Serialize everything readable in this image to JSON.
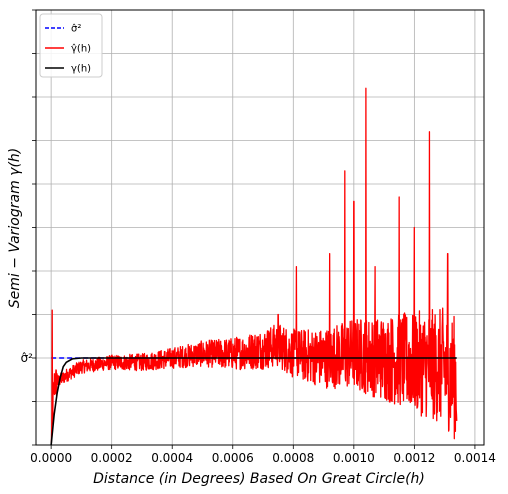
{
  "chart_data": {
    "type": "line",
    "xlabel": "Distance (in Degrees) Based On Great Circle(h)",
    "ylabel": "Semi − Variogram γ(h)",
    "xlim": [
      -5e-05,
      0.00143
    ],
    "ylim": [
      0.0,
      1.0
    ],
    "x_ticks": [
      0.0,
      0.0002,
      0.0004,
      0.0006,
      0.0008,
      0.001,
      0.0012,
      0.0014
    ],
    "x_tick_labels": [
      "0.0000",
      "0.0002",
      "0.0004",
      "0.0006",
      "0.0008",
      "0.0010",
      "0.0012",
      "0.0014"
    ],
    "y_ticks": [
      0.0,
      0.1,
      0.2,
      0.3,
      0.4,
      0.5,
      0.6,
      0.7,
      0.8,
      0.9,
      1.0
    ],
    "y_tick_label": "σ̂²",
    "y_tick_label_value": 0.2,
    "grid": true,
    "legend_position": "top-left",
    "legend": [
      "σ̂²",
      "γ̂(h)",
      "γ(h)"
    ],
    "series": [
      {
        "name": "σ̂²",
        "style": "dashed",
        "color": "#0000ff",
        "x": [
          0.0,
          0.00134
        ],
        "y": [
          0.2,
          0.2
        ]
      },
      {
        "name": "γ̂(h)",
        "style": "solid",
        "color": "#ff0000",
        "noisy": true,
        "x": [
          0.0,
          1e-05,
          5e-05,
          0.0001,
          0.0002,
          0.0003,
          0.0004,
          0.0005,
          0.0006,
          0.0007,
          0.00075,
          0.0008,
          0.0009,
          0.001,
          0.0011,
          0.0012,
          0.0013,
          0.00134
        ],
        "y": [
          0.0,
          0.14,
          0.16,
          0.18,
          0.19,
          0.19,
          0.2,
          0.21,
          0.21,
          0.22,
          0.23,
          0.21,
          0.2,
          0.21,
          0.2,
          0.19,
          0.18,
          0.15
        ],
        "peaks": [
          {
            "x": 3.5e-06,
            "y": 0.31
          },
          {
            "x": 0.00075,
            "y": 0.3
          },
          {
            "x": 0.00081,
            "y": 0.41
          },
          {
            "x": 0.00092,
            "y": 0.44
          },
          {
            "x": 0.00097,
            "y": 0.63
          },
          {
            "x": 0.001,
            "y": 0.56
          },
          {
            "x": 0.00104,
            "y": 0.82
          },
          {
            "x": 0.00107,
            "y": 0.41
          },
          {
            "x": 0.00115,
            "y": 0.57
          },
          {
            "x": 0.0012,
            "y": 0.5
          },
          {
            "x": 0.00125,
            "y": 0.72
          },
          {
            "x": 0.00131,
            "y": 0.44
          }
        ]
      },
      {
        "name": "γ(h)",
        "style": "solid",
        "color": "#000000",
        "x": [
          0.0,
          1e-05,
          2e-05,
          3e-05,
          4e-05,
          5e-05,
          7e-05,
          0.0001,
          0.0002,
          0.0005,
          0.001,
          0.00134
        ],
        "y": [
          0.0,
          0.07,
          0.12,
          0.155,
          0.18,
          0.19,
          0.198,
          0.2,
          0.2,
          0.2,
          0.2,
          0.2
        ]
      }
    ]
  }
}
